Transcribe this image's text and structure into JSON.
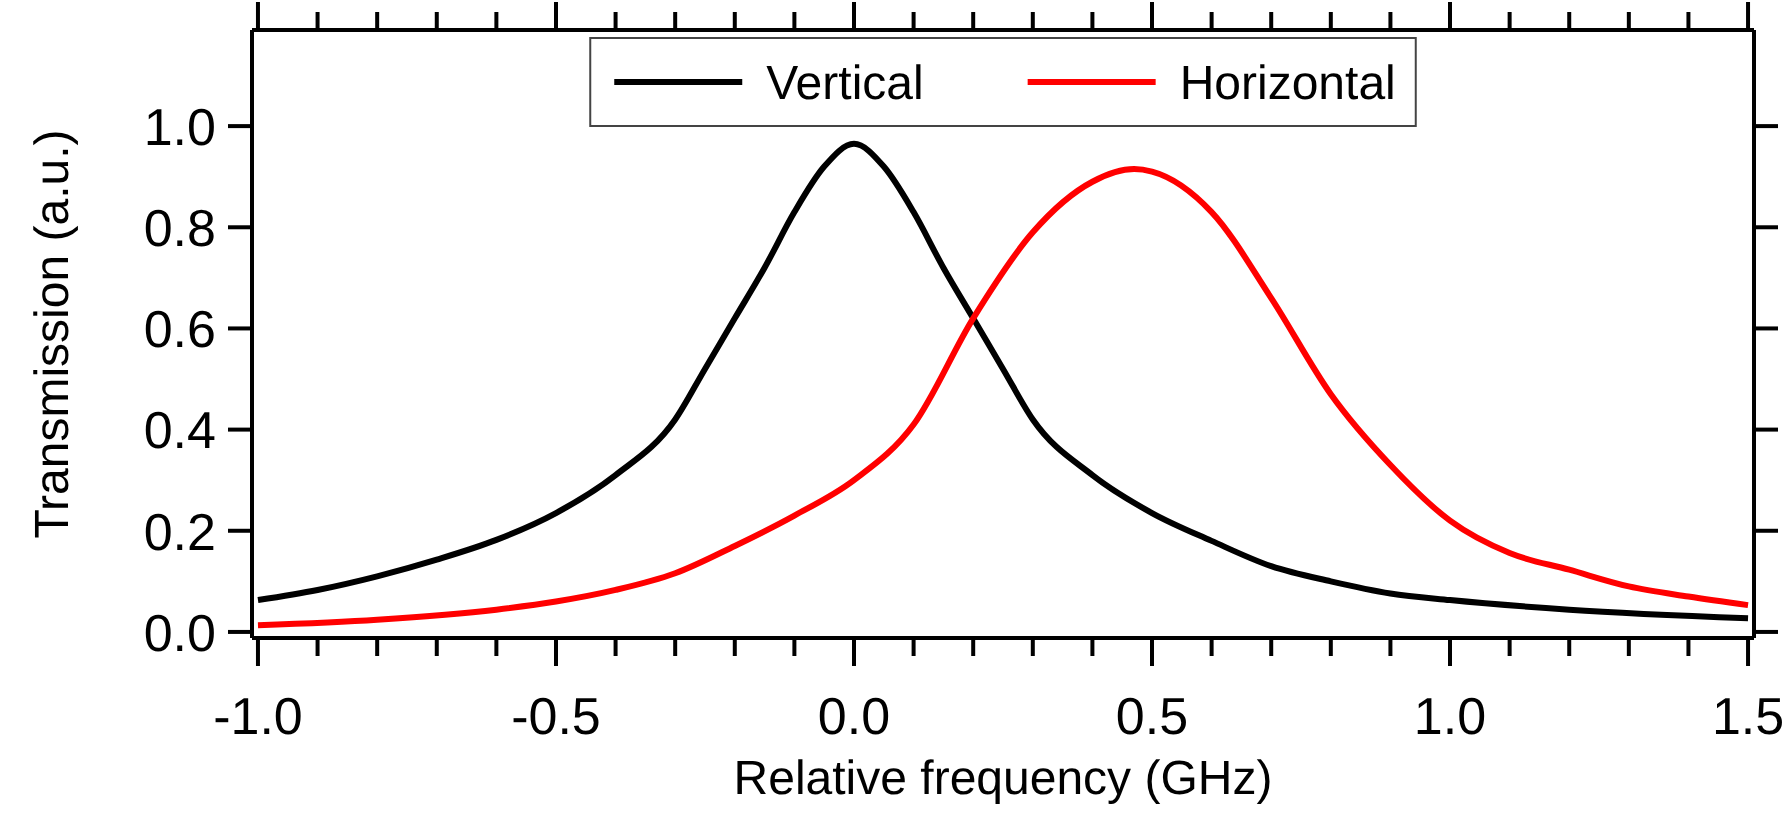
{
  "chart_data": {
    "type": "line",
    "xlabel": "Relative frequency (GHz)",
    "ylabel": "Transmission (a.u.)",
    "xlim": [
      -1.01,
      1.51
    ],
    "ylim": [
      -0.012,
      1.19
    ],
    "xticks": [
      {
        "value": -1,
        "label": "-1.0"
      },
      {
        "value": -0.9,
        "label": null
      },
      {
        "value": -0.8,
        "label": null
      },
      {
        "value": -0.7,
        "label": null
      },
      {
        "value": -0.6,
        "label": null
      },
      {
        "value": -0.5,
        "label": "-0.5"
      },
      {
        "value": -0.4,
        "label": null
      },
      {
        "value": -0.3,
        "label": null
      },
      {
        "value": -0.2,
        "label": null
      },
      {
        "value": -0.1,
        "label": null
      },
      {
        "value": 0,
        "label": "0.0"
      },
      {
        "value": 0.1,
        "label": null
      },
      {
        "value": 0.2,
        "label": null
      },
      {
        "value": 0.3,
        "label": null
      },
      {
        "value": 0.4,
        "label": null
      },
      {
        "value": 0.5,
        "label": "0.5"
      },
      {
        "value": 0.6,
        "label": null
      },
      {
        "value": 0.7,
        "label": null
      },
      {
        "value": 0.8,
        "label": null
      },
      {
        "value": 0.9,
        "label": null
      },
      {
        "value": 1,
        "label": "1.0"
      },
      {
        "value": 1.1,
        "label": null
      },
      {
        "value": 1.2,
        "label": null
      },
      {
        "value": 1.3,
        "label": null
      },
      {
        "value": 1.4,
        "label": null
      },
      {
        "value": 1.5,
        "label": "1.5"
      }
    ],
    "yticks": [
      {
        "value": 0,
        "label": "0.0"
      },
      {
        "value": 0.2,
        "label": "0.2"
      },
      {
        "value": 0.4,
        "label": "0.4"
      },
      {
        "value": 0.6,
        "label": "0.6"
      },
      {
        "value": 0.8,
        "label": "0.8"
      },
      {
        "value": 1,
        "label": "1.0"
      }
    ],
    "legend": "top",
    "grid": false,
    "marker": "none",
    "line_style": "solid",
    "series": [
      {
        "name": "Vertical",
        "color": "#000000",
        "x": [
          -1,
          -0.9,
          -0.8,
          -0.7,
          -0.6,
          -0.5,
          -0.4,
          -0.3,
          -0.25,
          -0.2,
          -0.15,
          -0.1,
          -0.05,
          0,
          0.05,
          0.1,
          0.15,
          0.2,
          0.25,
          0.3,
          0.4,
          0.5,
          0.6,
          0.7,
          0.8,
          0.9,
          1,
          1.2,
          1.5
        ],
        "values": [
          0.063,
          0.083,
          0.11,
          0.143,
          0.182,
          0.235,
          0.31,
          0.42,
          0.52,
          0.62,
          0.72,
          0.83,
          0.92,
          0.965,
          0.92,
          0.83,
          0.72,
          0.62,
          0.52,
          0.42,
          0.31,
          0.235,
          0.18,
          0.13,
          0.1,
          0.076,
          0.063,
          0.044,
          0.027
        ]
      },
      {
        "name": "Horizontal",
        "color": "#ff0000",
        "x": [
          -1,
          -0.8,
          -0.6,
          -0.5,
          -0.4,
          -0.3,
          -0.2,
          -0.1,
          0,
          0.1,
          0.2,
          0.3,
          0.4,
          0.47,
          0.5,
          0.6,
          0.7,
          0.8,
          0.9,
          1,
          1.1,
          1.2,
          1.3,
          1.4,
          1.5
        ],
        "values": [
          0.013,
          0.024,
          0.044,
          0.06,
          0.083,
          0.116,
          0.17,
          0.23,
          0.3,
          0.41,
          0.62,
          0.79,
          0.89,
          0.915,
          0.91,
          0.83,
          0.66,
          0.47,
          0.33,
          0.22,
          0.156,
          0.123,
          0.09,
          0.07,
          0.053
        ]
      }
    ]
  }
}
